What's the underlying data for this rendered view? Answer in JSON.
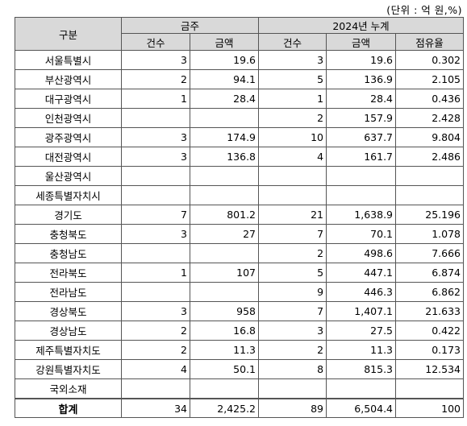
{
  "unit_note": "(단위 : 억 원,%)",
  "header": {
    "category": "구분",
    "group_week": "금주",
    "group_cumulative": "2024년 누계",
    "week_count": "건수",
    "week_amount": "금액",
    "cum_count": "건수",
    "cum_amount": "금액",
    "cum_share": "점유율"
  },
  "rows": [
    {
      "name": "서울특별시",
      "week_count": "3",
      "week_amount": "19.6",
      "cum_count": "3",
      "cum_amount": "19.6",
      "cum_share": "0.302"
    },
    {
      "name": "부산광역시",
      "week_count": "2",
      "week_amount": "94.1",
      "cum_count": "5",
      "cum_amount": "136.9",
      "cum_share": "2.105"
    },
    {
      "name": "대구광역시",
      "week_count": "1",
      "week_amount": "28.4",
      "cum_count": "1",
      "cum_amount": "28.4",
      "cum_share": "0.436"
    },
    {
      "name": "인천광역시",
      "week_count": "",
      "week_amount": "",
      "cum_count": "2",
      "cum_amount": "157.9",
      "cum_share": "2.428"
    },
    {
      "name": "광주광역시",
      "week_count": "3",
      "week_amount": "174.9",
      "cum_count": "10",
      "cum_amount": "637.7",
      "cum_share": "9.804"
    },
    {
      "name": "대전광역시",
      "week_count": "3",
      "week_amount": "136.8",
      "cum_count": "4",
      "cum_amount": "161.7",
      "cum_share": "2.486"
    },
    {
      "name": "울산광역시",
      "week_count": "",
      "week_amount": "",
      "cum_count": "",
      "cum_amount": "",
      "cum_share": ""
    },
    {
      "name": "세종특별자치시",
      "week_count": "",
      "week_amount": "",
      "cum_count": "",
      "cum_amount": "",
      "cum_share": ""
    },
    {
      "name": "경기도",
      "week_count": "7",
      "week_amount": "801.2",
      "cum_count": "21",
      "cum_amount": "1,638.9",
      "cum_share": "25.196"
    },
    {
      "name": "충청북도",
      "week_count": "3",
      "week_amount": "27",
      "cum_count": "7",
      "cum_amount": "70.1",
      "cum_share": "1.078"
    },
    {
      "name": "충청남도",
      "week_count": "",
      "week_amount": "",
      "cum_count": "2",
      "cum_amount": "498.6",
      "cum_share": "7.666"
    },
    {
      "name": "전라북도",
      "week_count": "1",
      "week_amount": "107",
      "cum_count": "5",
      "cum_amount": "447.1",
      "cum_share": "6.874"
    },
    {
      "name": "전라남도",
      "week_count": "",
      "week_amount": "",
      "cum_count": "9",
      "cum_amount": "446.3",
      "cum_share": "6.862"
    },
    {
      "name": "경상북도",
      "week_count": "3",
      "week_amount": "958",
      "cum_count": "7",
      "cum_amount": "1,407.1",
      "cum_share": "21.633"
    },
    {
      "name": "경상남도",
      "week_count": "2",
      "week_amount": "16.8",
      "cum_count": "3",
      "cum_amount": "27.5",
      "cum_share": "0.422"
    },
    {
      "name": "제주특별자치도",
      "week_count": "2",
      "week_amount": "11.3",
      "cum_count": "2",
      "cum_amount": "11.3",
      "cum_share": "0.173"
    },
    {
      "name": "강원특별자치도",
      "week_count": "4",
      "week_amount": "50.1",
      "cum_count": "8",
      "cum_amount": "815.3",
      "cum_share": "12.534"
    },
    {
      "name": "국외소재",
      "week_count": "",
      "week_amount": "",
      "cum_count": "",
      "cum_amount": "",
      "cum_share": ""
    }
  ],
  "total": {
    "name": "합계",
    "week_count": "34",
    "week_amount": "2,425.2",
    "cum_count": "89",
    "cum_amount": "6,504.4",
    "cum_share": "100"
  },
  "colors": {
    "header_bg": "#d9d9d9",
    "border": "#555555"
  }
}
